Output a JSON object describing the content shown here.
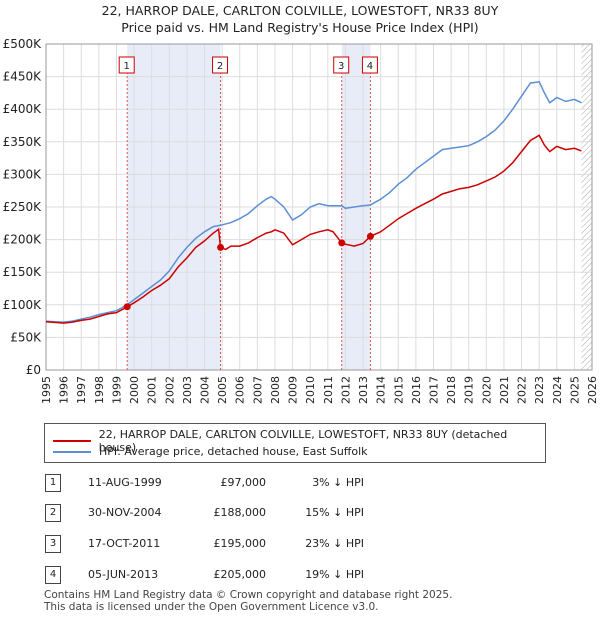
{
  "title_line1": "22, HARROP DALE, CARLTON COLVILLE, LOWESTOFT, NR33 8UY",
  "title_line2": "Price paid vs. HM Land Registry's House Price Index (HPI)",
  "chart_data": {
    "type": "line",
    "x_range": [
      1995,
      2026
    ],
    "y_range": [
      0,
      500000
    ],
    "y_ticks": [
      0,
      50000,
      100000,
      150000,
      200000,
      250000,
      300000,
      350000,
      400000,
      450000,
      500000
    ],
    "y_tick_labels": [
      "£0",
      "£50K",
      "£100K",
      "£150K",
      "£200K",
      "£250K",
      "£300K",
      "£350K",
      "£400K",
      "£450K",
      "£500K"
    ],
    "x_ticks": [
      1995,
      1996,
      1997,
      1998,
      1999,
      2000,
      2001,
      2002,
      2003,
      2004,
      2005,
      2006,
      2007,
      2008,
      2009,
      2010,
      2011,
      2012,
      2013,
      2014,
      2015,
      2016,
      2017,
      2018,
      2019,
      2020,
      2021,
      2022,
      2023,
      2024,
      2025,
      2026
    ],
    "grid": true,
    "legend_position": "below",
    "series": [
      {
        "name": "22, HARROP DALE, CARLTON COLVILLE, LOWESTOFT, NR33 8UY (detached house)",
        "color": "#cc0000",
        "points": [
          [
            1995.0,
            74000
          ],
          [
            1995.5,
            73000
          ],
          [
            1996.0,
            72000
          ],
          [
            1996.5,
            73500
          ],
          [
            1997.0,
            76000
          ],
          [
            1997.5,
            78000
          ],
          [
            1998.0,
            82000
          ],
          [
            1998.5,
            86000
          ],
          [
            1999.0,
            88000
          ],
          [
            1999.61,
            97000
          ],
          [
            2000.0,
            103000
          ],
          [
            2000.5,
            112000
          ],
          [
            2001.0,
            122000
          ],
          [
            2001.5,
            130000
          ],
          [
            2002.0,
            140000
          ],
          [
            2002.5,
            158000
          ],
          [
            2003.0,
            172000
          ],
          [
            2003.5,
            188000
          ],
          [
            2004.0,
            198000
          ],
          [
            2004.5,
            210000
          ],
          [
            2004.8,
            216000
          ],
          [
            2004.91,
            188000
          ],
          [
            2005.2,
            185000
          ],
          [
            2005.5,
            190000
          ],
          [
            2006.0,
            190000
          ],
          [
            2006.5,
            195000
          ],
          [
            2007.0,
            203000
          ],
          [
            2007.5,
            210000
          ],
          [
            2007.8,
            212000
          ],
          [
            2008.0,
            215000
          ],
          [
            2008.5,
            210000
          ],
          [
            2009.0,
            192000
          ],
          [
            2009.5,
            200000
          ],
          [
            2010.0,
            208000
          ],
          [
            2010.5,
            212000
          ],
          [
            2011.0,
            215000
          ],
          [
            2011.3,
            212000
          ],
          [
            2011.79,
            195000
          ],
          [
            2012.0,
            193000
          ],
          [
            2012.5,
            190000
          ],
          [
            2013.0,
            194000
          ],
          [
            2013.42,
            205000
          ],
          [
            2014.0,
            212000
          ],
          [
            2014.5,
            222000
          ],
          [
            2015.0,
            232000
          ],
          [
            2015.5,
            240000
          ],
          [
            2016.0,
            248000
          ],
          [
            2016.5,
            255000
          ],
          [
            2017.0,
            262000
          ],
          [
            2017.5,
            270000
          ],
          [
            2018.0,
            274000
          ],
          [
            2018.5,
            278000
          ],
          [
            2019.0,
            280000
          ],
          [
            2019.5,
            284000
          ],
          [
            2020.0,
            290000
          ],
          [
            2020.5,
            296000
          ],
          [
            2021.0,
            305000
          ],
          [
            2021.5,
            318000
          ],
          [
            2022.0,
            335000
          ],
          [
            2022.5,
            352000
          ],
          [
            2023.0,
            360000
          ],
          [
            2023.3,
            345000
          ],
          [
            2023.6,
            335000
          ],
          [
            2024.0,
            343000
          ],
          [
            2024.5,
            338000
          ],
          [
            2025.0,
            340000
          ],
          [
            2025.4,
            336000
          ]
        ]
      },
      {
        "name": "HPI: Average price, detached house, East Suffolk",
        "color": "#5b8fd6",
        "points": [
          [
            1995.0,
            75000
          ],
          [
            1995.5,
            74000
          ],
          [
            1996.0,
            73500
          ],
          [
            1996.5,
            75000
          ],
          [
            1997.0,
            78000
          ],
          [
            1997.5,
            81000
          ],
          [
            1998.0,
            85000
          ],
          [
            1998.5,
            88000
          ],
          [
            1999.0,
            91000
          ],
          [
            1999.61,
            100000
          ],
          [
            2000.0,
            108000
          ],
          [
            2000.5,
            118000
          ],
          [
            2001.0,
            128000
          ],
          [
            2001.5,
            138000
          ],
          [
            2002.0,
            152000
          ],
          [
            2002.5,
            172000
          ],
          [
            2003.0,
            188000
          ],
          [
            2003.5,
            202000
          ],
          [
            2004.0,
            212000
          ],
          [
            2004.5,
            220000
          ],
          [
            2004.91,
            222000
          ],
          [
            2005.5,
            226000
          ],
          [
            2006.0,
            232000
          ],
          [
            2006.5,
            240000
          ],
          [
            2007.0,
            252000
          ],
          [
            2007.5,
            262000
          ],
          [
            2007.8,
            266000
          ],
          [
            2008.0,
            262000
          ],
          [
            2008.5,
            250000
          ],
          [
            2009.0,
            230000
          ],
          [
            2009.5,
            238000
          ],
          [
            2010.0,
            250000
          ],
          [
            2010.5,
            255000
          ],
          [
            2011.0,
            252000
          ],
          [
            2011.79,
            252000
          ],
          [
            2012.0,
            248000
          ],
          [
            2012.5,
            250000
          ],
          [
            2013.0,
            252000
          ],
          [
            2013.42,
            253000
          ],
          [
            2014.0,
            262000
          ],
          [
            2014.5,
            272000
          ],
          [
            2015.0,
            285000
          ],
          [
            2015.5,
            295000
          ],
          [
            2016.0,
            308000
          ],
          [
            2016.5,
            318000
          ],
          [
            2017.0,
            328000
          ],
          [
            2017.5,
            338000
          ],
          [
            2018.0,
            340000
          ],
          [
            2018.5,
            342000
          ],
          [
            2019.0,
            344000
          ],
          [
            2019.5,
            350000
          ],
          [
            2020.0,
            358000
          ],
          [
            2020.5,
            368000
          ],
          [
            2021.0,
            382000
          ],
          [
            2021.5,
            400000
          ],
          [
            2022.0,
            420000
          ],
          [
            2022.5,
            440000
          ],
          [
            2023.0,
            442000
          ],
          [
            2023.3,
            425000
          ],
          [
            2023.6,
            410000
          ],
          [
            2024.0,
            418000
          ],
          [
            2024.5,
            412000
          ],
          [
            2025.0,
            415000
          ],
          [
            2025.4,
            410000
          ]
        ]
      }
    ],
    "sales": [
      {
        "label": "1",
        "year": 1999.61,
        "price": 97000
      },
      {
        "label": "2",
        "year": 2004.91,
        "price": 188000
      },
      {
        "label": "3",
        "year": 2011.79,
        "price": 195000
      },
      {
        "label": "4",
        "year": 2013.42,
        "price": 205000
      }
    ],
    "shaded_periods": [
      [
        1999.61,
        2004.91
      ],
      [
        2011.79,
        2013.42
      ]
    ],
    "forecast_start": 2025.4
  },
  "legend": {
    "property_label": "22, HARROP DALE, CARLTON COLVILLE, LOWESTOFT, NR33 8UY (detached house)",
    "hpi_label": "HPI: Average price, detached house, East Suffolk"
  },
  "sales_table": [
    {
      "num": "1",
      "date": "11-AUG-1999",
      "price": "£97,000",
      "hpi": "3% ↓ HPI"
    },
    {
      "num": "2",
      "date": "30-NOV-2004",
      "price": "£188,000",
      "hpi": "15% ↓ HPI"
    },
    {
      "num": "3",
      "date": "17-OCT-2011",
      "price": "£195,000",
      "hpi": "23% ↓ HPI"
    },
    {
      "num": "4",
      "date": "05-JUN-2013",
      "price": "£205,000",
      "hpi": "19% ↓ HPI"
    }
  ],
  "footer_line1": "Contains HM Land Registry data © Crown copyright and database right 2025.",
  "footer_line2": "This data is licensed under the Open Government Licence v3.0."
}
